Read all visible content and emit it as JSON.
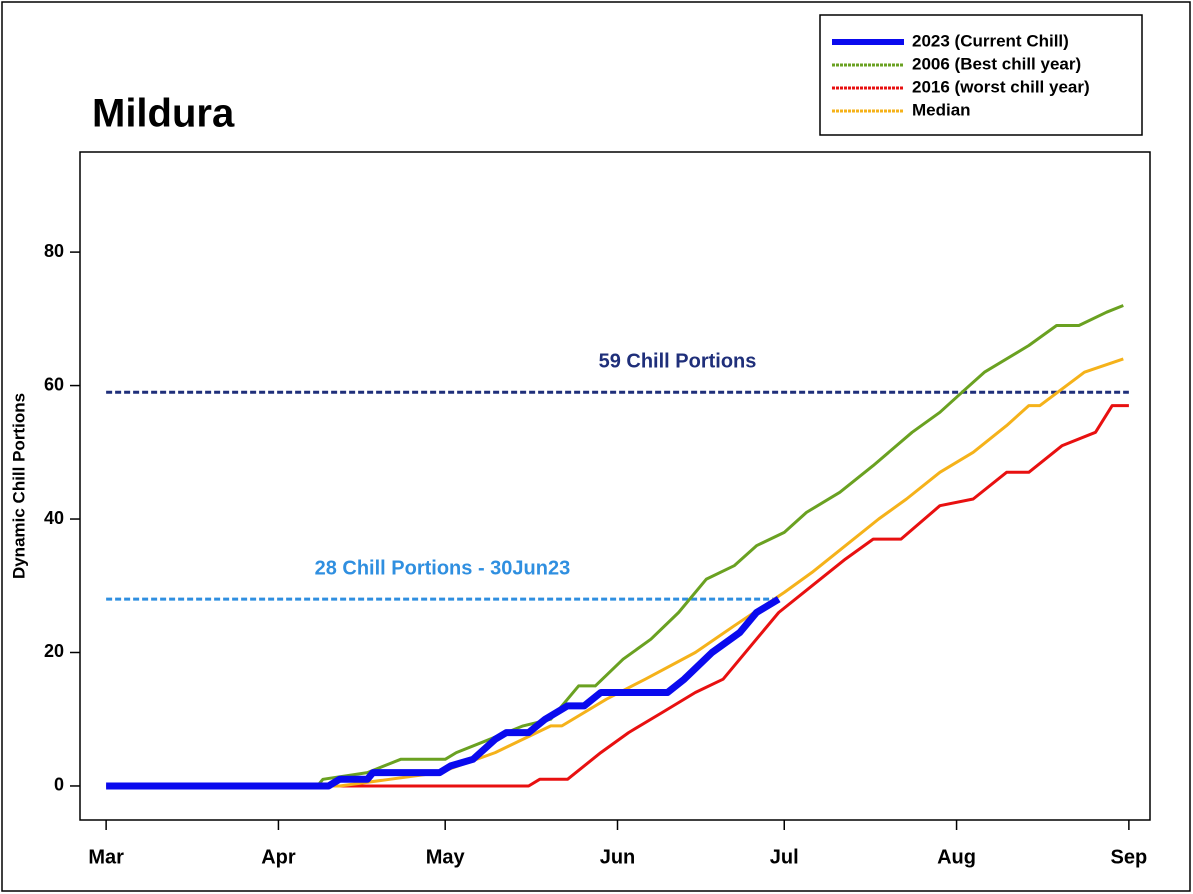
{
  "chart_data": {
    "type": "line",
    "title": "Mildura",
    "ylabel": "Dynamic Chill Portions",
    "xlim": [
      -4.7,
      187.8
    ],
    "ylim": [
      -5.1,
      95
    ],
    "xticks": [
      {
        "value": 0,
        "label": "Mar"
      },
      {
        "value": 31,
        "label": "Apr"
      },
      {
        "value": 61,
        "label": "May"
      },
      {
        "value": 92,
        "label": "Jun"
      },
      {
        "value": 122,
        "label": "Jul"
      },
      {
        "value": 153,
        "label": "Aug"
      },
      {
        "value": 184,
        "label": "Sep"
      }
    ],
    "yticks": [
      0,
      20,
      40,
      60,
      80
    ],
    "legend": "upper right",
    "hlines": [
      {
        "value": 59,
        "label": "59 Chill Portions",
        "color": "#1f2f7a",
        "xend": 184
      },
      {
        "value": 28,
        "label": "28 Chill Portions - 30Jun23",
        "color": "#2f8fe0",
        "xend": 121
      }
    ],
    "series": [
      {
        "name": "2006 (Best chill year)",
        "color": "#6aa121",
        "x": [
          0,
          38,
          39,
          47,
          53,
          61,
          63,
          69,
          75,
          80,
          85,
          88,
          93,
          98,
          103,
          108,
          113,
          117,
          122,
          126,
          132,
          138,
          145,
          150,
          154,
          158,
          166,
          171,
          175,
          180,
          183
        ],
        "values": [
          0,
          0,
          1,
          2,
          4,
          4,
          5,
          7,
          9,
          10,
          15,
          15,
          19,
          22,
          26,
          31,
          33,
          36,
          38,
          41,
          44,
          48,
          53,
          56,
          59,
          62,
          66,
          69,
          69,
          71,
          72
        ]
      },
      {
        "name": "2016 (worst chill year)",
        "color": "#e81010",
        "x": [
          0,
          76,
          78,
          83,
          89,
          94,
          100,
          106,
          111,
          116,
          121,
          127,
          133,
          138,
          143,
          150,
          156,
          162,
          166,
          172,
          178,
          181,
          184
        ],
        "values": [
          0,
          0,
          1,
          1,
          5,
          8,
          11,
          14,
          16,
          21,
          26,
          30,
          34,
          37,
          37,
          42,
          43,
          47,
          47,
          51,
          53,
          57,
          57
        ]
      },
      {
        "name": "Median",
        "color": "#f5b21a",
        "x": [
          0,
          42,
          51,
          60,
          70,
          80,
          82,
          90,
          97,
          106,
          113,
          122,
          127,
          133,
          139,
          144,
          150,
          156,
          162,
          166,
          168,
          176,
          183
        ],
        "values": [
          0,
          0,
          1,
          2,
          5,
          9,
          9,
          13,
          16,
          20,
          24,
          29,
          32,
          36,
          40,
          43,
          47,
          50,
          54,
          57,
          57,
          62,
          64
        ]
      },
      {
        "name": "2023 (Current Chill)",
        "color": "#0a0aee",
        "x": [
          0,
          40,
          42,
          47,
          48,
          60,
          62,
          66,
          70,
          72,
          76,
          79,
          83,
          86,
          89,
          101,
          104,
          109,
          114,
          117,
          121
        ],
        "values": [
          0,
          0,
          1,
          1,
          2,
          2,
          3,
          4,
          7,
          8,
          8,
          10,
          12,
          12,
          14,
          14,
          16,
          20,
          23,
          26,
          28
        ]
      }
    ]
  }
}
